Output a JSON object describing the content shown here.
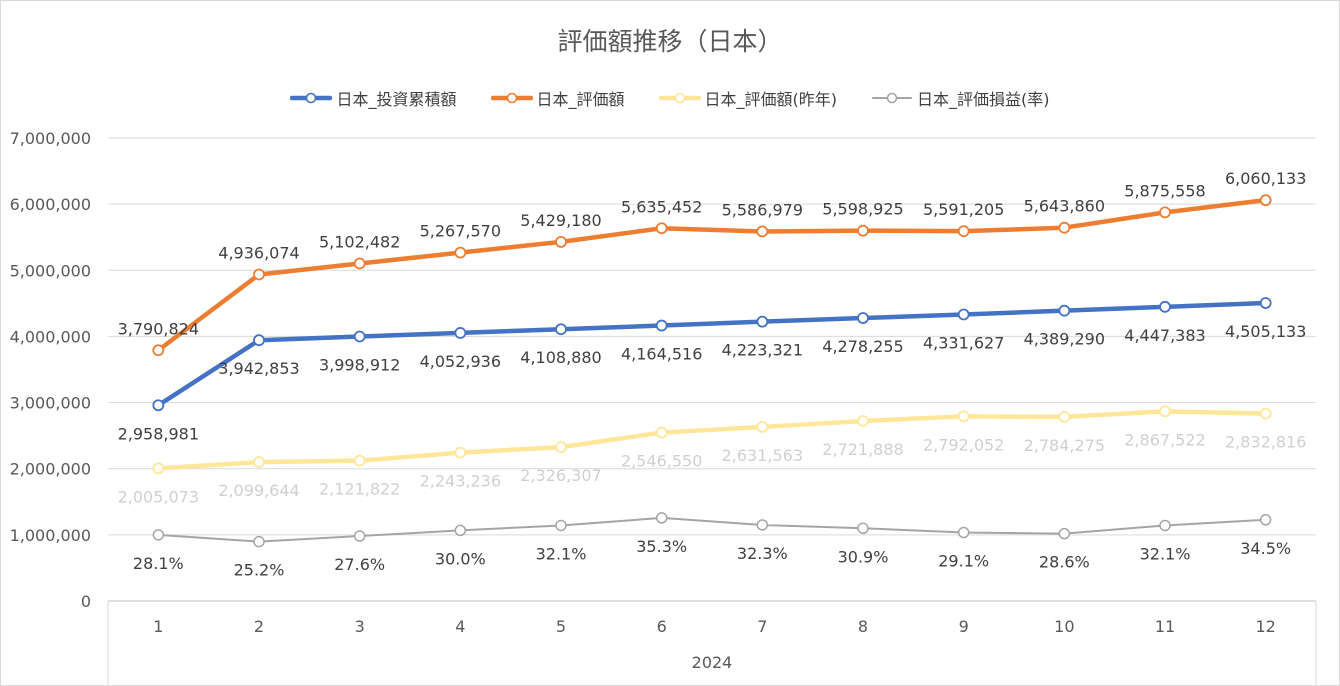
{
  "chart_data": {
    "type": "line",
    "title": "評価額推移（日本）",
    "categories": [
      "1",
      "2",
      "3",
      "4",
      "5",
      "6",
      "7",
      "8",
      "9",
      "10",
      "11",
      "12"
    ],
    "category_group": "2024",
    "ylim": [
      0,
      7000000
    ],
    "yticks": [
      0,
      1000000,
      2000000,
      3000000,
      4000000,
      5000000,
      6000000,
      7000000
    ],
    "ytick_labels": [
      "0",
      "1,000,000",
      "2,000,000",
      "3,000,000",
      "4,000,000",
      "5,000,000",
      "6,000,000",
      "7,000,000"
    ],
    "grid": true,
    "legend_position": "top",
    "series": [
      {
        "name": "日本_投資累積額",
        "color": "#4472c4",
        "line_width": "thick",
        "label_position": "below",
        "label_color": "#404040",
        "values": [
          2958981,
          3942853,
          3998912,
          4052936,
          4108880,
          4164516,
          4223321,
          4278255,
          4331627,
          4389290,
          4447383,
          4505133
        ],
        "labels": [
          "2,958,981",
          "3,942,853",
          "3,998,912",
          "4,052,936",
          "4,108,880",
          "4,164,516",
          "4,223,321",
          "4,278,255",
          "4,331,627",
          "4,389,290",
          "4,447,383",
          "4,505,133"
        ]
      },
      {
        "name": "日本_評価額",
        "color": "#ed7d31",
        "line_width": "thick",
        "label_position": "above",
        "label_color": "#404040",
        "values": [
          3790824,
          4936074,
          5102482,
          5267570,
          5429180,
          5635452,
          5586979,
          5598925,
          5591205,
          5643860,
          5875558,
          6060133
        ],
        "labels": [
          "3,790,824",
          "4,936,074",
          "5,102,482",
          "5,267,570",
          "5,429,180",
          "5,635,452",
          "5,586,979",
          "5,598,925",
          "5,591,205",
          "5,643,860",
          "5,875,558",
          "6,060,133"
        ]
      },
      {
        "name": "日本_評価額(昨年)",
        "color": "#ffe699",
        "line_width": "thick",
        "label_position": "below",
        "label_color": "#d0d0d0",
        "values": [
          2005073,
          2099644,
          2121822,
          2243236,
          2326307,
          2546550,
          2631563,
          2721888,
          2792052,
          2784275,
          2867522,
          2832816
        ],
        "labels": [
          "2,005,073",
          "2,099,644",
          "2,121,822",
          "2,243,236",
          "2,326,307",
          "2,546,550",
          "2,631,563",
          "2,721,888",
          "2,792,052",
          "2,784,275",
          "2,867,522",
          "2,832,816"
        ]
      },
      {
        "name": "日本_評価損益(率)",
        "color": "#a5a5a5",
        "line_width": "thin",
        "label_position": "below",
        "label_color": "#404040",
        "values": [
          28.1,
          25.2,
          27.6,
          30.0,
          32.1,
          35.3,
          32.3,
          30.9,
          29.1,
          28.6,
          32.1,
          34.5
        ],
        "labels": [
          "28.1%",
          "25.2%",
          "27.6%",
          "30.0%",
          "32.1%",
          "35.3%",
          "32.3%",
          "30.9%",
          "29.1%",
          "28.6%",
          "32.1%",
          "34.5%"
        ]
      }
    ]
  }
}
